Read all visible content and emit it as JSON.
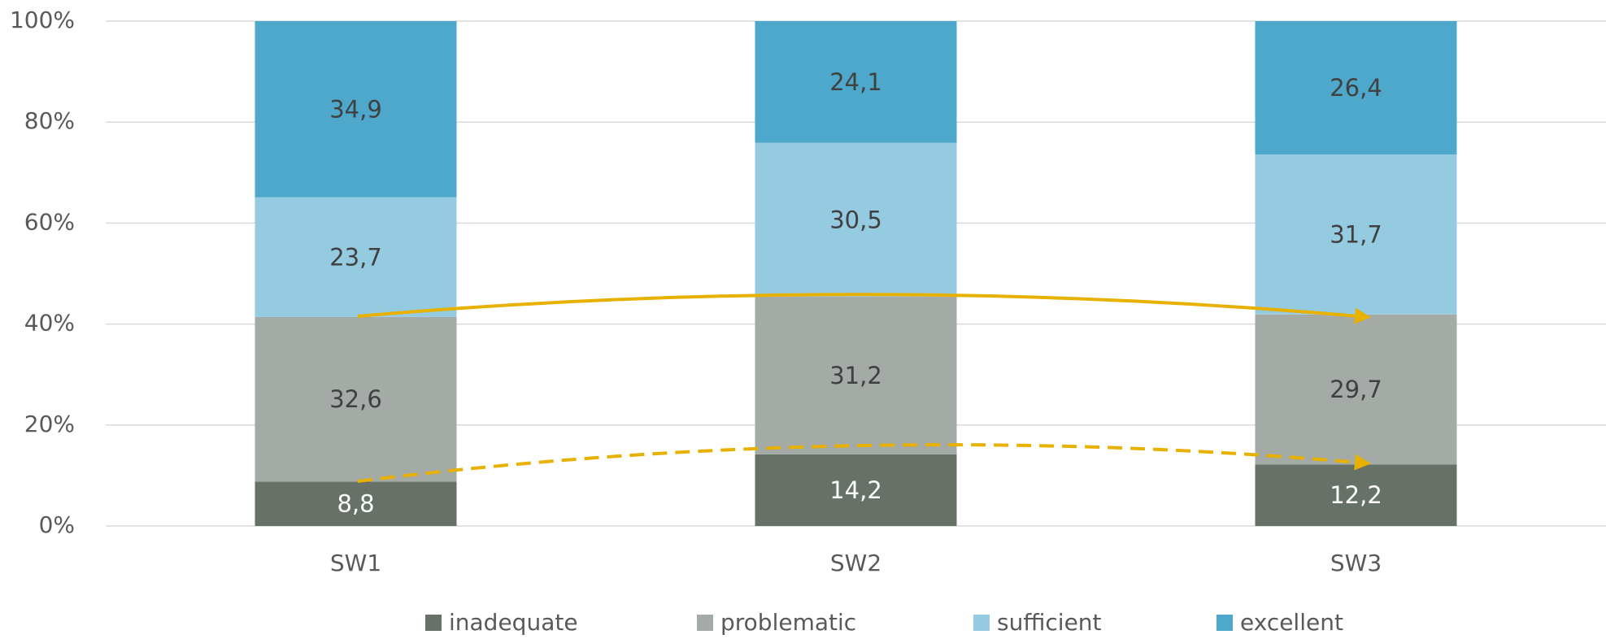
{
  "chart_data": {
    "type": "stacked_bar",
    "categories": [
      "SW1",
      "SW2",
      "SW3"
    ],
    "series": [
      {
        "name": "inadequate",
        "color": "#677168",
        "label_color": "#ffffff",
        "values": [
          8.8,
          14.2,
          12.2
        ],
        "value_labels": [
          "8,8",
          "14,2",
          "12,2"
        ]
      },
      {
        "name": "problematic",
        "color": "#a4aaa5",
        "label_color": "#404040",
        "values": [
          32.6,
          31.2,
          29.7
        ],
        "value_labels": [
          "32,6",
          "31,2",
          "29,7"
        ]
      },
      {
        "name": "sufficient",
        "color": "#95cbe0",
        "label_color": "#404040",
        "values": [
          23.7,
          30.5,
          31.7
        ],
        "value_labels": [
          "23,7",
          "30,5",
          "31,7"
        ]
      },
      {
        "name": "excellent",
        "color": "#4ea8cc",
        "label_color": "#404040",
        "values": [
          34.9,
          24.1,
          26.4
        ],
        "value_labels": [
          "34,9",
          "24,1",
          "26,4"
        ]
      }
    ],
    "ylim": [
      0,
      100
    ],
    "yticks": [
      {
        "value": 0,
        "label": "0%"
      },
      {
        "value": 20,
        "label": "20%"
      },
      {
        "value": 40,
        "label": "40%"
      },
      {
        "value": 60,
        "label": "60%"
      },
      {
        "value": 80,
        "label": "80%"
      },
      {
        "value": 100,
        "label": "100%"
      }
    ],
    "grid": true,
    "legend": "bottom"
  }
}
